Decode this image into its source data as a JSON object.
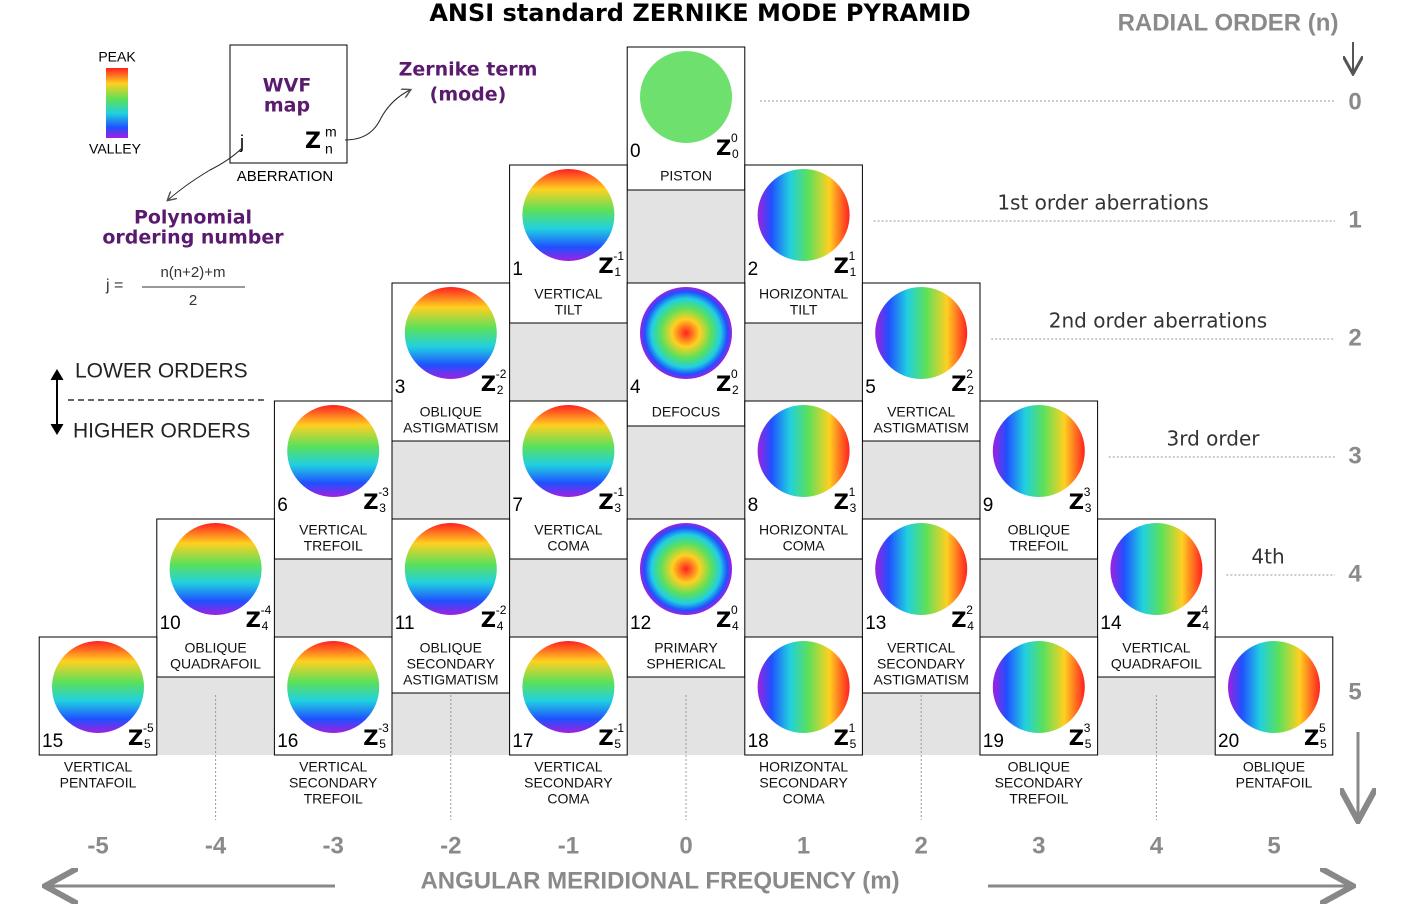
{
  "title": "ANSI standard ZERNIKE MODE PYRAMID",
  "legend": {
    "peak": "PEAK",
    "valley": "VALLEY"
  },
  "key": {
    "map_label": [
      "WVF",
      "map"
    ],
    "j": "j",
    "symbol": "Z",
    "superscript": "m",
    "subscript": "n",
    "caption": "ABERRATION",
    "term_note": [
      "Zernike term",
      "(mode)"
    ],
    "ordering_note": [
      "Polynomial",
      "ordering number"
    ],
    "formula": {
      "lhs": "j =",
      "numerator": "n(n+2)+m",
      "denominator": "2"
    }
  },
  "order_guide": {
    "lower": "LOWER ORDERS",
    "higher": "HIGHER ORDERS"
  },
  "radial_axis": {
    "label": "RADIAL ORDER (n)",
    "orders": [
      0,
      1,
      2,
      3,
      4,
      5
    ],
    "annotations": [
      "1st order aberrations",
      "2nd order aberrations",
      "3rd order",
      "4th"
    ]
  },
  "angular_axis": {
    "label": "ANGULAR MERIDIONAL FREQUENCY (m)",
    "frequencies": [
      -5,
      -4,
      -3,
      -2,
      -1,
      0,
      1,
      2,
      3,
      4,
      5
    ]
  },
  "modes": [
    {
      "j": 0,
      "n": 0,
      "m": 0,
      "name": [
        "PISTON"
      ]
    },
    {
      "j": 1,
      "n": 1,
      "m": -1,
      "name": [
        "VERTICAL",
        "TILT"
      ]
    },
    {
      "j": 2,
      "n": 1,
      "m": 1,
      "name": [
        "HORIZONTAL",
        "TILT"
      ]
    },
    {
      "j": 3,
      "n": 2,
      "m": -2,
      "name": [
        "OBLIQUE",
        "ASTIGMATISM"
      ]
    },
    {
      "j": 4,
      "n": 2,
      "m": 0,
      "name": [
        "DEFOCUS"
      ]
    },
    {
      "j": 5,
      "n": 2,
      "m": 2,
      "name": [
        "VERTICAL",
        "ASTIGMATISM"
      ]
    },
    {
      "j": 6,
      "n": 3,
      "m": -3,
      "name": [
        "VERTICAL",
        "TREFOIL"
      ]
    },
    {
      "j": 7,
      "n": 3,
      "m": -1,
      "name": [
        "VERTICAL",
        "COMA"
      ]
    },
    {
      "j": 8,
      "n": 3,
      "m": 1,
      "name": [
        "HORIZONTAL",
        "COMA"
      ]
    },
    {
      "j": 9,
      "n": 3,
      "m": 3,
      "name": [
        "OBLIQUE",
        "TREFOIL"
      ]
    },
    {
      "j": 10,
      "n": 4,
      "m": -4,
      "name": [
        "OBLIQUE",
        "QUADRAFOIL"
      ]
    },
    {
      "j": 11,
      "n": 4,
      "m": -2,
      "name": [
        "OBLIQUE",
        "SECONDARY",
        "ASTIGMATISM"
      ]
    },
    {
      "j": 12,
      "n": 4,
      "m": 0,
      "name": [
        "PRIMARY",
        "SPHERICAL"
      ]
    },
    {
      "j": 13,
      "n": 4,
      "m": 2,
      "name": [
        "VERTICAL",
        "SECONDARY",
        "ASTIGMATISM"
      ]
    },
    {
      "j": 14,
      "n": 4,
      "m": 4,
      "name": [
        "VERTICAL",
        "QUADRAFOIL"
      ]
    },
    {
      "j": 15,
      "n": 5,
      "m": -5,
      "name": [
        "VERTICAL",
        "PENTAFOIL"
      ]
    },
    {
      "j": 16,
      "n": 5,
      "m": -3,
      "name": [
        "VERTICAL",
        "SECONDARY",
        "TREFOIL"
      ]
    },
    {
      "j": 17,
      "n": 5,
      "m": -1,
      "name": [
        "VERTICAL",
        "SECONDARY",
        "COMA"
      ]
    },
    {
      "j": 18,
      "n": 5,
      "m": 1,
      "name": [
        "HORIZONTAL",
        "SECONDARY",
        "COMA"
      ]
    },
    {
      "j": 19,
      "n": 5,
      "m": 3,
      "name": [
        "OBLIQUE",
        "SECONDARY",
        "TREFOIL"
      ]
    },
    {
      "j": 20,
      "n": 5,
      "m": 5,
      "name": [
        "OBLIQUE",
        "PENTAFOIL"
      ]
    }
  ]
}
